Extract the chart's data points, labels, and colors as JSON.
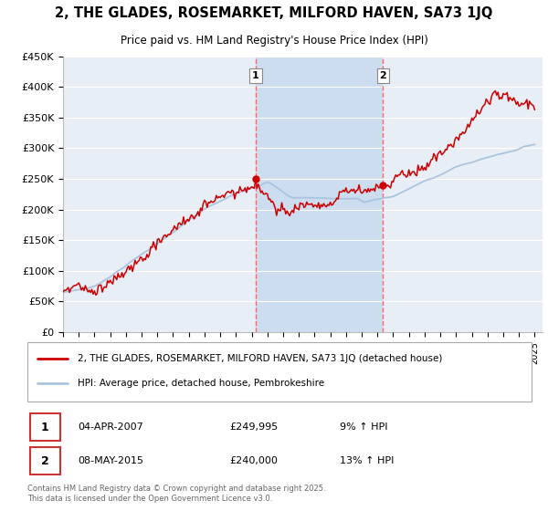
{
  "title": "2, THE GLADES, ROSEMARKET, MILFORD HAVEN, SA73 1JQ",
  "subtitle": "Price paid vs. HM Land Registry's House Price Index (HPI)",
  "legend_line1": "2, THE GLADES, ROSEMARKET, MILFORD HAVEN, SA73 1JQ (detached house)",
  "legend_line2": "HPI: Average price, detached house, Pembrokeshire",
  "annotation1_date": "04-APR-2007",
  "annotation1_price": "£249,995",
  "annotation1_hpi": "9% ↑ HPI",
  "annotation2_date": "08-MAY-2015",
  "annotation2_price": "£240,000",
  "annotation2_hpi": "13% ↑ HPI",
  "footer": "Contains HM Land Registry data © Crown copyright and database right 2025.\nThis data is licensed under the Open Government Licence v3.0.",
  "ylim": [
    0,
    450000
  ],
  "yticks": [
    0,
    50000,
    100000,
    150000,
    200000,
    250000,
    300000,
    350000,
    400000,
    450000
  ],
  "hpi_color": "#aac4e0",
  "price_color": "#cc0000",
  "vline_color": "#ff6666",
  "bg_color": "#e8eef5",
  "highlight_bg": "#ccddf0",
  "sale1_year": 2007.25,
  "sale1_price": 249995,
  "sale2_year": 2015.35,
  "sale2_price": 240000
}
